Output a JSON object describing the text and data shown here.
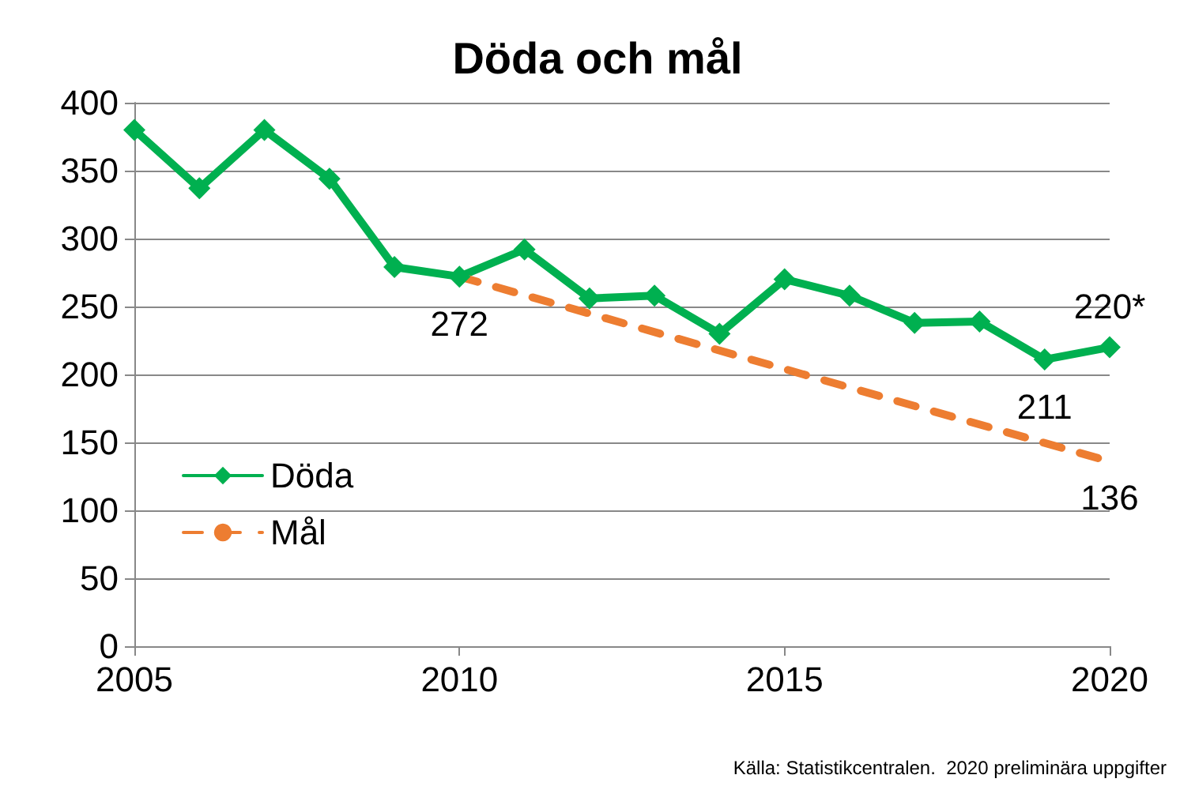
{
  "chart_data": {
    "type": "line",
    "title": "Döda och mål",
    "annotations": [
      "Källa: Statistikcentralen.  2020 preliminära uppgifter"
    ],
    "xlim": [
      2005,
      2020
    ],
    "xticks": [
      2005,
      2010,
      2015,
      2020
    ],
    "ylim": [
      0,
      400
    ],
    "yticks": [
      0,
      50,
      100,
      150,
      200,
      250,
      300,
      350,
      400
    ],
    "grid": "y",
    "legend": "bottom left",
    "series": [
      {
        "name": "Döda",
        "color": "#00b050",
        "marker": "diamond",
        "line_style": "solid",
        "x": [
          2005,
          2006,
          2007,
          2008,
          2009,
          2010,
          2011,
          2012,
          2013,
          2014,
          2015,
          2016,
          2017,
          2018,
          2019,
          2020
        ],
        "values": [
          380,
          337,
          380,
          344,
          279,
          272,
          292,
          256,
          258,
          230,
          270,
          258,
          238,
          239,
          211,
          220
        ],
        "value_labels": [
          null,
          null,
          null,
          null,
          null,
          "272",
          null,
          null,
          null,
          null,
          null,
          null,
          null,
          null,
          "211",
          "220*"
        ]
      },
      {
        "name": "Mål",
        "color": "#ed7d31",
        "marker": "none",
        "line_style": "dashed",
        "x": [
          2010,
          2020
        ],
        "values": [
          272,
          136
        ],
        "value_labels": [
          null,
          "136"
        ]
      }
    ]
  }
}
